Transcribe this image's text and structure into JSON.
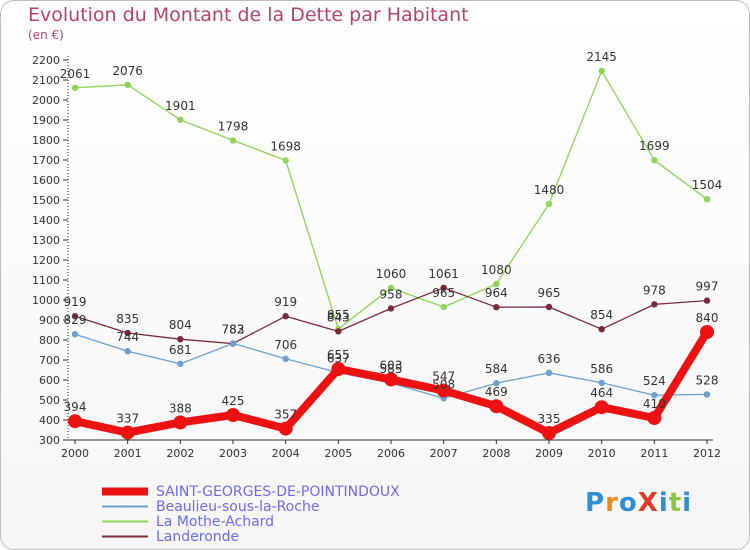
{
  "title": "Evolution du Montant de la Dette par Habitant",
  "unit": "(en €)",
  "logo": {
    "text": "ProXiti",
    "colors": [
      "#2f8fd8",
      "#f08a1a",
      "#2f8fd8",
      "#e03a2a",
      "#2f8fd8",
      "#8cc640",
      "#2f8fd8"
    ]
  },
  "chart_data": {
    "type": "line",
    "title": "Evolution du Montant de la Dette par Habitant",
    "ylabel": "(en €)",
    "xlabel": "",
    "x": [
      "2000",
      "2001",
      "2002",
      "2003",
      "2004",
      "2005",
      "2006",
      "2007",
      "2008",
      "2009",
      "2010",
      "2011",
      "2012"
    ],
    "ylim": [
      300,
      2200
    ],
    "yticks": [
      300,
      400,
      500,
      600,
      700,
      800,
      900,
      1000,
      1100,
      1200,
      1300,
      1400,
      1500,
      1600,
      1700,
      1800,
      1900,
      2000,
      2100,
      2200
    ],
    "grid": false,
    "legend_position": "bottom-left",
    "series": [
      {
        "name": "SAINT-GEORGES-DE-POINTINDOUX",
        "color": "#ee1111",
        "values": [
          394,
          337,
          388,
          425,
          357,
          655,
          603,
          547,
          469,
          335,
          464,
          410,
          840
        ],
        "labels": [
          "394",
          "337",
          "388",
          "425",
          "357",
          "655",
          "603",
          "547",
          "469",
          "335",
          "464",
          "410",
          "840"
        ]
      },
      {
        "name": "Beaulieu-sous-la-Roche",
        "color": "#6ea0cf",
        "values": [
          829,
          744,
          681,
          783,
          706,
          637,
          585,
          508,
          584,
          636,
          586,
          524,
          528
        ],
        "labels": [
          "829",
          "744",
          "681",
          "783",
          "706",
          "637",
          "585",
          "508",
          "584",
          "636",
          "586",
          "524",
          "528"
        ]
      },
      {
        "name": "La Mothe-Achard",
        "color": "#8fd45a",
        "values": [
          2061,
          2076,
          1901,
          1798,
          1698,
          855,
          1060,
          965,
          1080,
          1480,
          2145,
          1699,
          1504
        ],
        "labels": [
          "2061",
          "2076",
          "1901",
          "1798",
          "1698",
          "855",
          "1060",
          "965",
          "1080",
          "1480",
          "2145",
          "1699",
          "1504"
        ]
      },
      {
        "name": "Landeronde",
        "color": "#7a2a38",
        "values": [
          919,
          835,
          804,
          782,
          919,
          843,
          958,
          1061,
          964,
          965,
          854,
          978,
          997
        ],
        "labels": [
          "919",
          "835",
          "804",
          "782",
          "919",
          "843",
          "958",
          "1061",
          "964",
          "965",
          "854",
          "978",
          "997"
        ]
      }
    ]
  }
}
